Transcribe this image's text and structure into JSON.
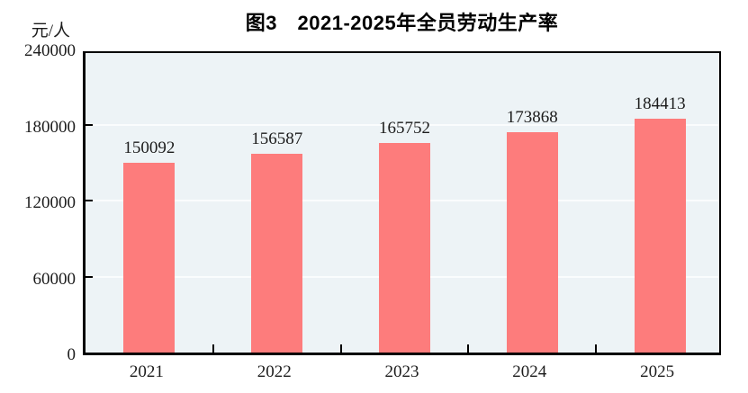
{
  "page": {
    "background": "#ffffff"
  },
  "chart": {
    "title": "图3　2021-2025年全员劳动生产率",
    "unit_label": "元/人",
    "colors": {
      "bar": "#fd7c7c",
      "plot_bg": "#edf3f6",
      "gridline": "#fafcfd",
      "axis": "#000000",
      "text": "#1c1c1c"
    }
  },
  "chart_data": {
    "type": "bar",
    "title": "图3　2021-2025年全员劳动生产率",
    "categories": [
      "2021",
      "2022",
      "2023",
      "2024",
      "2025"
    ],
    "values": [
      150092,
      156587,
      165752,
      173868,
      184413
    ],
    "value_labels": [
      "150092",
      "156587",
      "165752",
      "173868",
      "184413"
    ],
    "xlabel": "",
    "ylabel": "元/人",
    "ylim": [
      0,
      240000
    ],
    "yticks": [
      0,
      60000,
      120000,
      180000,
      240000
    ],
    "ytick_labels": [
      "0",
      "60000",
      "120000",
      "180000",
      "240000"
    ],
    "grid": "horizontal",
    "legend": "none",
    "bar_color": "#fd7c7c"
  }
}
